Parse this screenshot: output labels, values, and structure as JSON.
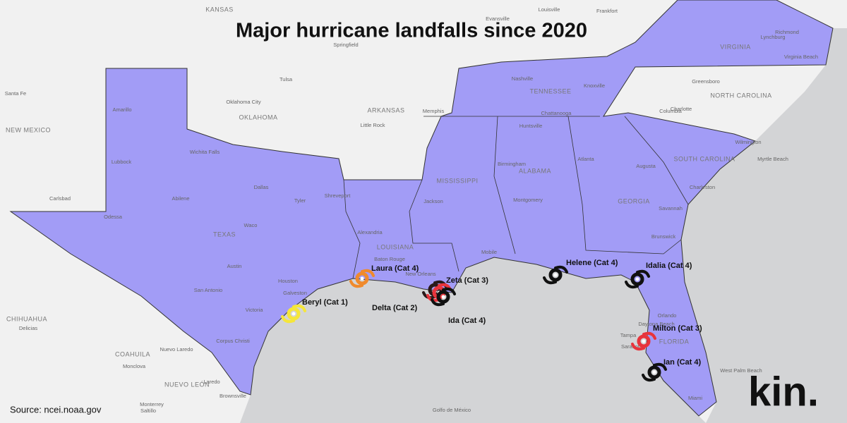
{
  "title": "Major hurricane landfalls since 2020",
  "source": "Source: ncei.noaa.gov",
  "logo": "kin.",
  "hurricanes": [
    {
      "label": "Beryl (Cat 1)",
      "color": "#f5e63a"
    },
    {
      "label": "Laura (Cat 4)",
      "color": "#f08a2c"
    },
    {
      "label": "Delta (Cat 2)",
      "color": "#2a1a1a"
    },
    {
      "label": "Zeta (Cat 3)",
      "color": "#e8343c"
    },
    {
      "label": "Ida (Cat 4)",
      "color": "#111111"
    },
    {
      "label": "Helene (Cat 4)",
      "color": "#111111"
    },
    {
      "label": "Idalia (Cat 4)",
      "color": "#111111"
    },
    {
      "label": "Milton (Cat 3)",
      "color": "#e8343c"
    },
    {
      "label": "Ian (Cat 4)",
      "color": "#111111"
    }
  ],
  "states": [
    "TEXAS",
    "LOUISIANA",
    "MISSISSIPPI",
    "ALABAMA",
    "GEORGIA",
    "FLORIDA",
    "TENNESSEE",
    "SOUTH CAROLINA",
    "VIRGINIA",
    "NORTH CAROLINA",
    "OKLAHOMA",
    "ARKANSAS",
    "NEW MEXICO",
    "KANSAS",
    "CHIHUAHUA",
    "COAHUILA",
    "NUEVO LEÓN"
  ],
  "cities": [
    "Houston",
    "Dallas",
    "Austin",
    "San Antonio",
    "Amarillo",
    "Lubbock",
    "Odessa",
    "Abilene",
    "Waco",
    "Tyler",
    "Wichita Falls",
    "Victoria",
    "Corpus Christi",
    "Galveston",
    "Shreveport",
    "Alexandria",
    "Baton Rouge",
    "New Orleans",
    "Jackson",
    "Mobile",
    "Montgomery",
    "Birmingham",
    "Atlanta",
    "Augusta",
    "Savannah",
    "Brunswick",
    "Orlando",
    "Daytona Beach",
    "Tampa",
    "Sarasota",
    "Miami",
    "Nashville",
    "Knoxville",
    "Chattanooga",
    "Huntsville",
    "Charleston",
    "Columbia",
    "Wilmington",
    "Myrtle Beach",
    "Greensboro",
    "Charlotte",
    "Richmond",
    "Virginia Beach",
    "Lynchburg",
    "Memphis",
    "Little Rock",
    "Tulsa",
    "Oklahoma City",
    "Springfield",
    "Louisville",
    "Evansville",
    "Frankfort",
    "Monterrey",
    "Nuevo Laredo",
    "Saltillo",
    "Monclova",
    "Delicias",
    "Brownsville",
    "Laredo",
    "Carlsbad",
    "Santa Fe",
    "West Palm Beach",
    "Golfo de México"
  ]
}
